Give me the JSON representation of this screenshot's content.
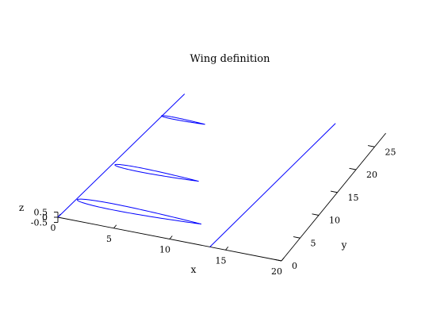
{
  "chart_data": {
    "type": "line",
    "title": "Wing definition",
    "xlabel": "x",
    "ylabel": "y",
    "zlabel": "z",
    "xlim": [
      0,
      20
    ],
    "ylim": [
      0,
      28
    ],
    "zlim": [
      -0.5,
      0.5
    ],
    "x_ticks": [
      "0",
      "5",
      "10",
      "15",
      "20"
    ],
    "y_ticks": [
      "0",
      "5",
      "10",
      "15",
      "20",
      "25"
    ],
    "z_ticks": [
      "-0.5",
      "0",
      "0.5"
    ],
    "grid": false,
    "color": "#0000ff",
    "series": [
      {
        "kind": "leading-edge",
        "points": [
          [
            0.0,
            0.0,
            0.0
          ],
          [
            2.0,
            28.0,
            0.0
          ]
        ]
      },
      {
        "kind": "trailing-edge",
        "points": [
          [
            13.6,
            0.0,
            0.0
          ],
          [
            15.5,
            28.0,
            0.0
          ]
        ]
      },
      {
        "kind": "airfoil-section",
        "y": 4.0,
        "x_le": 0.4,
        "chord": 11.1,
        "thickness": 0.6
      },
      {
        "kind": "airfoil-section",
        "y": 12.0,
        "x_le": 1.1,
        "chord": 7.5,
        "thickness": 0.4
      },
      {
        "kind": "airfoil-section",
        "y": 23.0,
        "x_le": 1.6,
        "chord": 3.9,
        "thickness": 0.2
      }
    ]
  }
}
